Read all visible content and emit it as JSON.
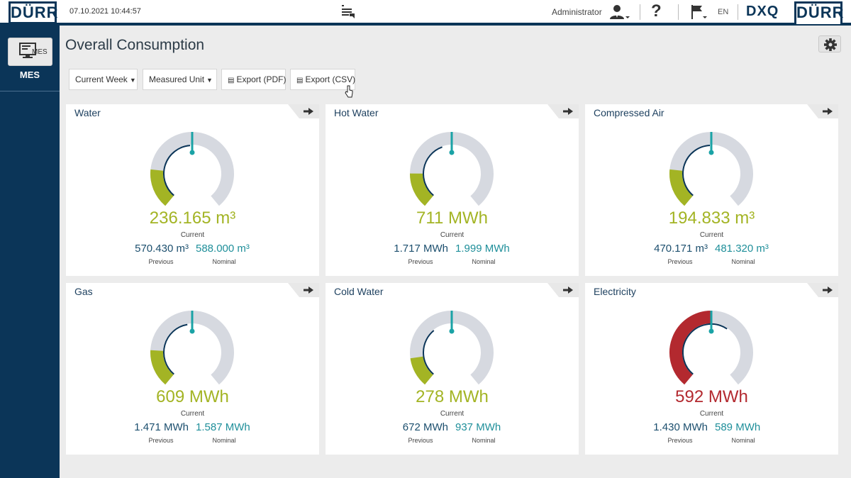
{
  "header": {
    "brand": "DÜRR",
    "datetime": "07.10.2021 10:44:57",
    "user": "Administrator",
    "help": "?",
    "language": "EN",
    "product": "DXQ"
  },
  "sidebar": {
    "mes_button_label": "MES",
    "mes_label": "MES"
  },
  "page": {
    "title": "Overall Consumption"
  },
  "toolbar": {
    "period": "Current Week",
    "unit": "Measured Unit",
    "export_pdf": "Export (PDF)",
    "export_csv": "Export (CSV)"
  },
  "labels": {
    "current": "Current",
    "previous": "Previous",
    "nominal": "Nominal"
  },
  "colors": {
    "ok": "#a3b424",
    "alert": "#b3292f",
    "accent": "#1aa3a6",
    "navy": "#0b3558",
    "track": "#d6d9e0"
  },
  "cards": [
    {
      "title": "Water",
      "current": "236.165 m³",
      "previous": "570.430 m³",
      "nominal": "588.000 m³",
      "status": "ok",
      "current_fraction": 0.2,
      "previous_fraction": 0.485
    },
    {
      "title": "Hot Water",
      "current": "711 MWh",
      "previous": "1.717 MWh",
      "nominal": "1.999 MWh",
      "status": "ok",
      "current_fraction": 0.18,
      "previous_fraction": 0.43
    },
    {
      "title": "Compressed Air",
      "current": "194.833 m³",
      "previous": "470.171 m³",
      "nominal": "481.320 m³",
      "status": "ok",
      "current_fraction": 0.2,
      "previous_fraction": 0.49
    },
    {
      "title": "Gas",
      "current": "609 MWh",
      "previous": "1.471 MWh",
      "nominal": "1.587 MWh",
      "status": "ok",
      "current_fraction": 0.19,
      "previous_fraction": 0.465
    },
    {
      "title": "Cold Water",
      "current": "278 MWh",
      "previous": "672 MWh",
      "nominal": "937 MWh",
      "status": "ok",
      "current_fraction": 0.15,
      "previous_fraction": 0.36
    },
    {
      "title": "Electricity",
      "current": "592 MWh",
      "previous": "1.430 MWh",
      "nominal": "589 MWh",
      "status": "alert",
      "current_fraction": 0.5,
      "previous_fraction": 0.62
    }
  ]
}
